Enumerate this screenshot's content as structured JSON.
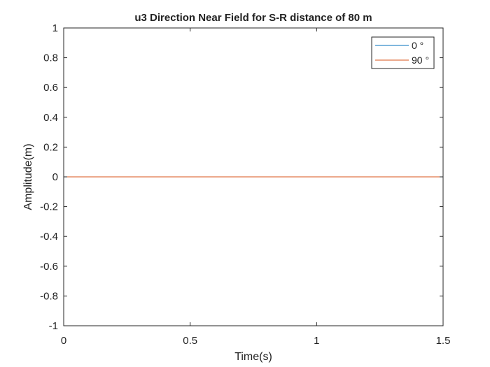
{
  "chart_data": {
    "type": "line",
    "title": "u3 Direction Near Field for S-R distance of 80 m",
    "xlabel": "Time(s)",
    "ylabel": "Amplitude(m)",
    "xlim": [
      0,
      1.5
    ],
    "ylim": [
      -1,
      1
    ],
    "xticks": [
      0,
      0.5,
      1,
      1.5
    ],
    "xtick_labels": [
      "0",
      "0.5",
      "1",
      "1.5"
    ],
    "yticks": [
      1,
      0.8,
      0.6,
      0.4,
      0.2,
      0,
      -0.2,
      -0.4,
      -0.6,
      -0.8,
      -1
    ],
    "ytick_labels": [
      "1",
      "0.8",
      "0.6",
      "0.4",
      "0.2",
      "0",
      "-0.2",
      "-0.4",
      "-0.6",
      "-0.8",
      "-1"
    ],
    "grid": false,
    "legend_position": "top-right",
    "series": [
      {
        "name": "0 °",
        "color": "#0072bd",
        "x": [
          0,
          1.5
        ],
        "y": [
          0,
          0
        ]
      },
      {
        "name": "90 °",
        "color": "#d95319",
        "x": [
          0,
          1.5
        ],
        "y": [
          0,
          0
        ]
      }
    ]
  }
}
